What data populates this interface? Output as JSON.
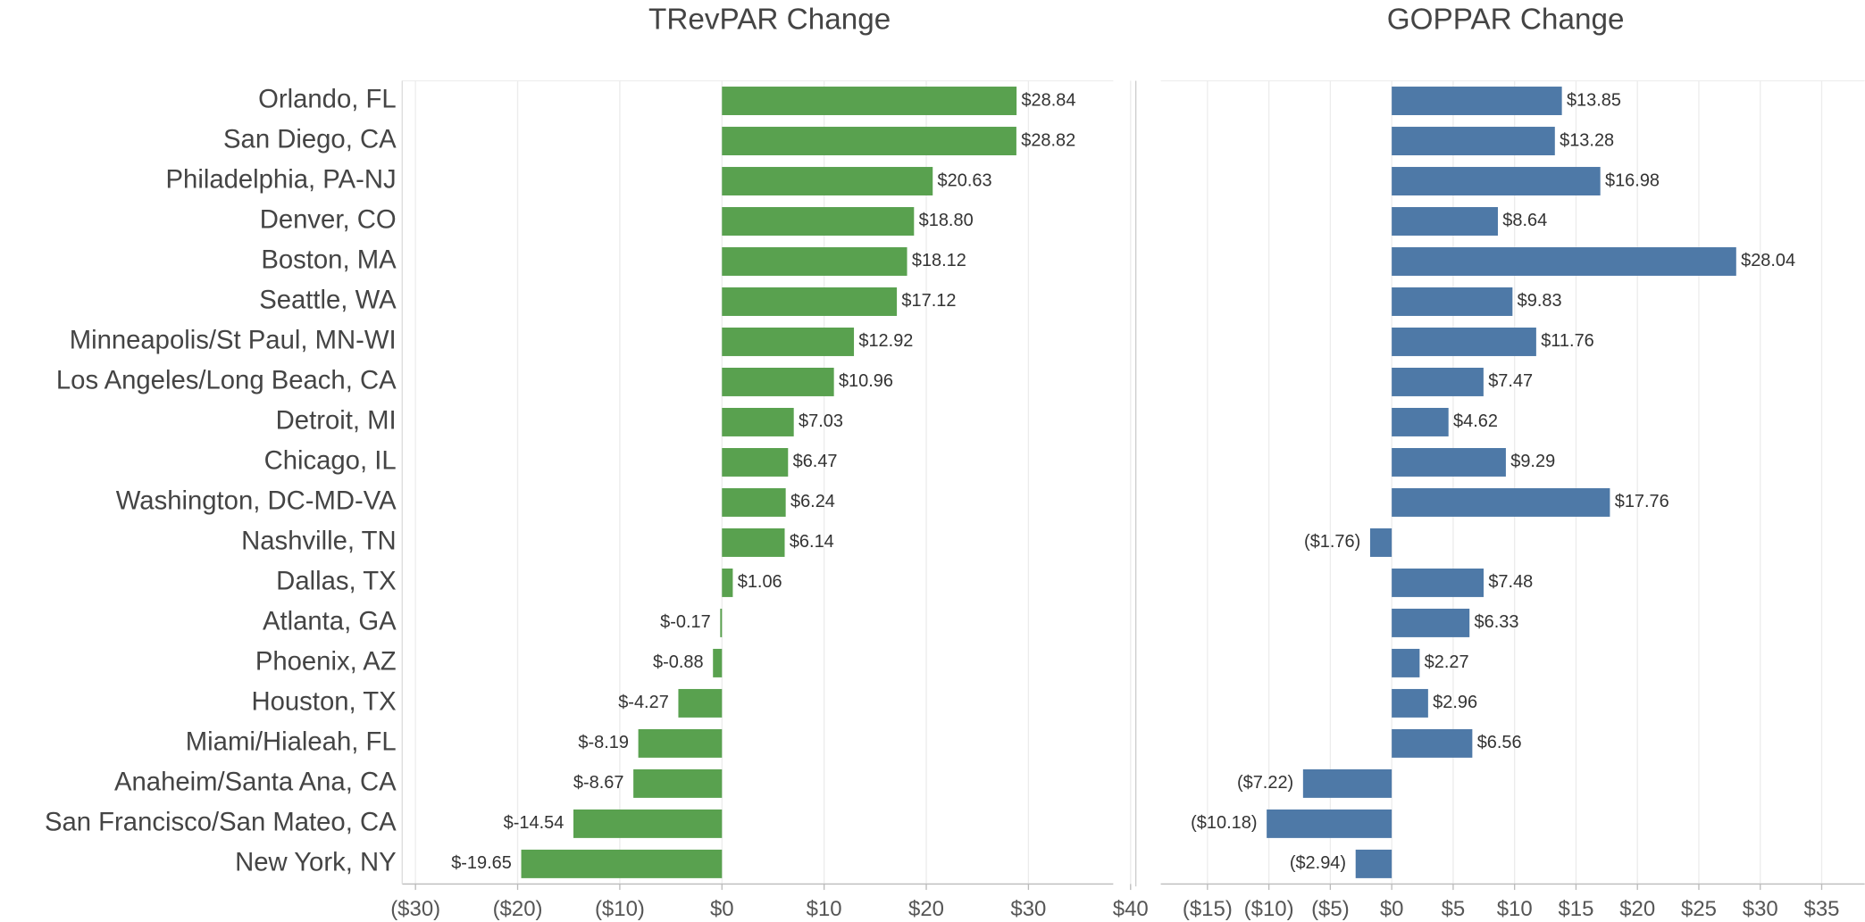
{
  "chart_data": [
    {
      "type": "barh",
      "title": "TRevPAR Change",
      "color": "#59a14f",
      "categories": [
        "Orlando, FL",
        "San Diego, CA",
        "Philadelphia, PA-NJ",
        "Denver, CO",
        "Boston, MA",
        "Seattle, WA",
        "Minneapolis/St Paul, MN-WI",
        "Los Angeles/Long Beach, CA",
        "Detroit, MI",
        "Chicago, IL",
        "Washington, DC-MD-VA",
        "Nashville, TN",
        "Dallas, TX",
        "Atlanta, GA",
        "Phoenix, AZ",
        "Houston, TX",
        "Miami/Hialeah, FL",
        "Anaheim/Santa Ana, CA",
        "San Francisco/San Mateo, CA",
        "New York, NY"
      ],
      "values": [
        28.84,
        28.82,
        20.63,
        18.8,
        18.12,
        17.12,
        12.92,
        10.96,
        7.03,
        6.47,
        6.24,
        6.14,
        1.06,
        -0.17,
        -0.88,
        -4.27,
        -8.19,
        -8.67,
        -14.54,
        -19.65
      ],
      "value_labels": [
        "$28.84",
        "$28.82",
        "$20.63",
        "$18.80",
        "$18.12",
        "$17.12",
        "$12.92",
        "$10.96",
        "$7.03",
        "$6.47",
        "$6.24",
        "$6.14",
        "$1.06",
        "$-0.17",
        "$-0.88",
        "$-4.27",
        "$-8.19",
        "$-8.67",
        "$-14.54",
        "$-19.65"
      ],
      "xlim": [
        -31.3,
        38.3
      ],
      "xticks": [
        {
          "value": -30,
          "label": "($30)"
        },
        {
          "value": -20,
          "label": "($20)"
        },
        {
          "value": -10,
          "label": "($10)"
        },
        {
          "value": 0,
          "label": "$0"
        },
        {
          "value": 10,
          "label": "$10"
        },
        {
          "value": 20,
          "label": "$20"
        },
        {
          "value": 30,
          "label": "$30"
        },
        {
          "value": 40,
          "label": "$40"
        }
      ],
      "grid": true
    },
    {
      "type": "barh",
      "title": "GOPPAR Change",
      "color": "#4e79a7",
      "values": [
        13.85,
        13.28,
        16.98,
        8.64,
        28.04,
        9.83,
        11.76,
        7.47,
        4.62,
        9.29,
        17.76,
        -1.76,
        7.48,
        6.33,
        2.27,
        2.96,
        6.56,
        -7.22,
        -10.18,
        -2.94
      ],
      "value_labels": [
        "$13.85",
        "$13.28",
        "$16.98",
        "$8.64",
        "$28.04",
        "$9.83",
        "$11.76",
        "$7.47",
        "$4.62",
        "$9.29",
        "$17.76",
        "($1.76)",
        "$7.48",
        "$6.33",
        "$2.27",
        "$2.96",
        "$6.56",
        "($7.22)",
        "($10.18)",
        "($2.94)"
      ],
      "xlim": [
        -18.8,
        38.5
      ],
      "xticks": [
        {
          "value": -15,
          "label": "($15)"
        },
        {
          "value": -10,
          "label": "($10)"
        },
        {
          "value": -5,
          "label": "($5)"
        },
        {
          "value": 0,
          "label": "$0"
        },
        {
          "value": 5,
          "label": "$5"
        },
        {
          "value": 10,
          "label": "$10"
        },
        {
          "value": 15,
          "label": "$15"
        },
        {
          "value": 20,
          "label": "$20"
        },
        {
          "value": 25,
          "label": "$25"
        },
        {
          "value": 30,
          "label": "$30"
        },
        {
          "value": 35,
          "label": "$35"
        }
      ],
      "grid": true
    }
  ]
}
